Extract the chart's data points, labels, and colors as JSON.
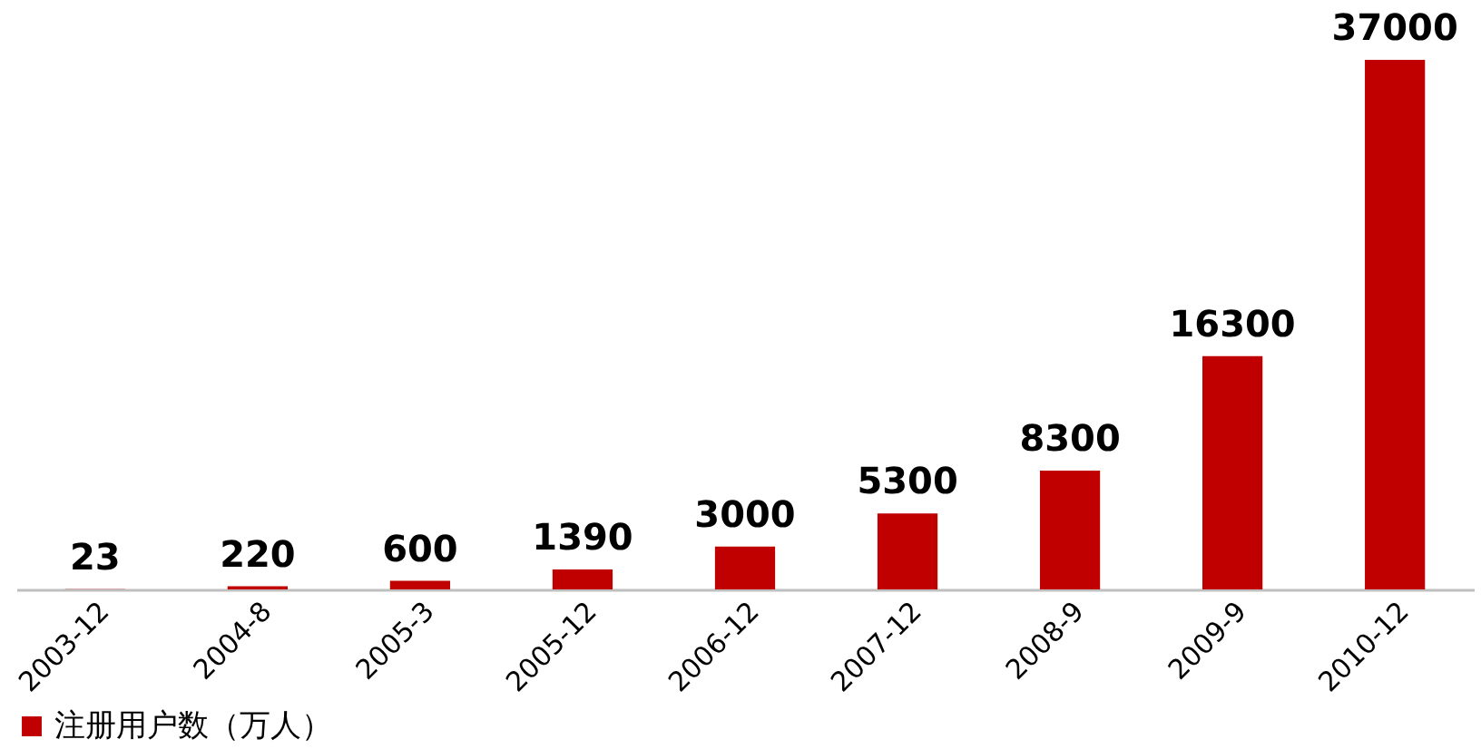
{
  "chart_data": {
    "type": "bar",
    "categories": [
      "2003-12",
      "2004-8",
      "2005-3",
      "2005-12",
      "2006-12",
      "2007-12",
      "2008-9",
      "2009-9",
      "2010-12"
    ],
    "series": [
      {
        "name": "注册用户数（万人）",
        "color": "#c00000",
        "values": [
          23,
          220,
          600,
          1390,
          3000,
          5300,
          8300,
          16300,
          37000
        ]
      }
    ],
    "data_labels": true,
    "legend": "bottom",
    "tick_labels": "x"
  }
}
